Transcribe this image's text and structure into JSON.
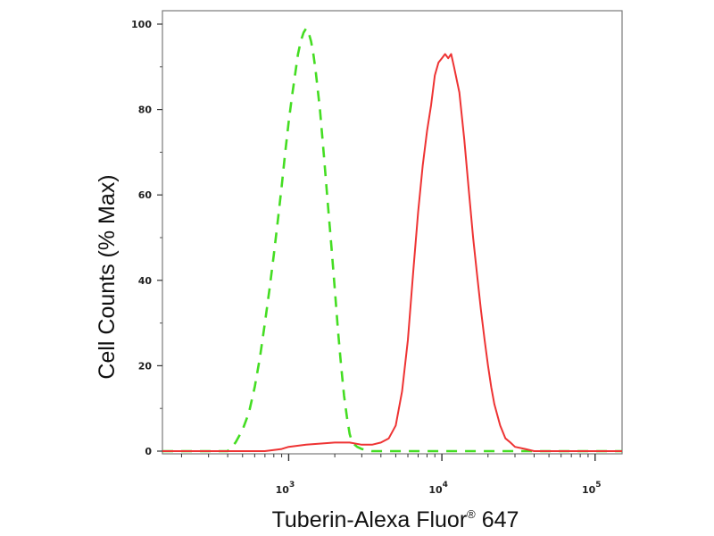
{
  "chart_data": {
    "type": "line",
    "title": "",
    "xlabel": "Tuberin-Alexa Fluor",
    "xlabel_super": "®",
    "xlabel_suffix": " 647",
    "ylabel": "Cell Counts (% Max)",
    "x_scale": "log",
    "xlim": [
      150,
      150000
    ],
    "ylim": [
      0,
      105
    ],
    "y_ticks": [
      0,
      20,
      40,
      60,
      80,
      100
    ],
    "x_ticks": [
      {
        "value": 1000,
        "base": "10",
        "exp": "3"
      },
      {
        "value": 10000,
        "base": "10",
        "exp": "4"
      },
      {
        "value": 100000,
        "base": "10",
        "exp": "5"
      }
    ],
    "grid": false,
    "legend": "none",
    "series": [
      {
        "color": "#44dd22",
        "style": "dashed",
        "x": [
          150,
          300,
          400,
          450,
          500,
          550,
          600,
          650,
          700,
          750,
          800,
          850,
          900,
          950,
          1000,
          1050,
          1100,
          1150,
          1200,
          1250,
          1300,
          1350,
          1400,
          1450,
          1500,
          1600,
          1700,
          1800,
          1900,
          2000,
          2100,
          2200,
          2300,
          2400,
          2500,
          2600,
          2800,
          3000,
          3500,
          5000,
          10000,
          150000
        ],
        "y": [
          0,
          0,
          0,
          2,
          5,
          9,
          15,
          22,
          30,
          38,
          46,
          54,
          62,
          70,
          77,
          83,
          88,
          93,
          96,
          98,
          99,
          98,
          96,
          93,
          89,
          80,
          69,
          58,
          48,
          38,
          28,
          20,
          13,
          8,
          4,
          2,
          1,
          0.5,
          0,
          0,
          0,
          0
        ]
      },
      {
        "color": "#ee3333",
        "style": "solid",
        "x": [
          150,
          700,
          900,
          1000,
          1300,
          2000,
          2500,
          3000,
          3500,
          4000,
          4500,
          5000,
          5500,
          6000,
          6500,
          7000,
          7500,
          8000,
          8500,
          9000,
          9500,
          10000,
          10500,
          11000,
          11500,
          12000,
          13000,
          14000,
          15000,
          16000,
          17000,
          18000,
          19000,
          20000,
          21000,
          22000,
          24000,
          26000,
          28000,
          30000,
          35000,
          40000,
          150000
        ],
        "y": [
          0,
          0,
          0.5,
          1,
          1.5,
          2,
          2,
          1.5,
          1.5,
          2,
          3,
          6,
          14,
          26,
          42,
          56,
          67,
          75,
          81,
          88,
          91,
          92,
          93,
          92,
          93,
          90,
          84,
          73,
          61,
          50,
          41,
          33,
          26,
          20,
          15,
          11,
          6,
          3,
          2,
          1,
          0.5,
          0,
          0
        ]
      }
    ]
  }
}
